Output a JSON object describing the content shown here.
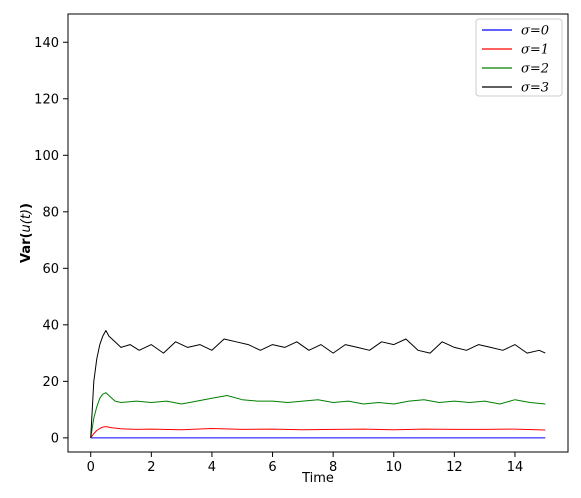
{
  "chart_data": {
    "type": "line",
    "xlabel": "Time",
    "ylabel_prefix": "Var(",
    "ylabel_var": "u(t)",
    "ylabel_suffix": ")",
    "xlim": [
      -0.75,
      15.75
    ],
    "ylim": [
      -5,
      150
    ],
    "xticks": [
      0,
      2,
      4,
      6,
      8,
      10,
      12,
      14
    ],
    "yticks": [
      0,
      20,
      40,
      60,
      80,
      100,
      120,
      140
    ],
    "grid": false,
    "legend_position": "top-right",
    "series": [
      {
        "name": "σ=0",
        "color": "#0000ff",
        "x": [
          0,
          15
        ],
        "y": [
          0,
          0
        ]
      },
      {
        "name": "σ=1",
        "color": "#ff0000",
        "x": [
          0,
          0.1,
          0.2,
          0.3,
          0.4,
          0.5,
          0.7,
          1,
          1.5,
          2,
          3,
          4,
          5,
          6,
          7,
          8,
          9,
          10,
          11,
          12,
          13,
          14,
          15
        ],
        "y": [
          0,
          1.5,
          2.6,
          3.3,
          3.8,
          4.0,
          3.6,
          3.2,
          3.0,
          3.1,
          2.9,
          3.3,
          3.0,
          3.1,
          2.9,
          3.0,
          3.1,
          2.9,
          3.1,
          3.0,
          3.0,
          3.1,
          2.8
        ]
      },
      {
        "name": "σ=2",
        "color": "#008000",
        "x": [
          0,
          0.1,
          0.2,
          0.3,
          0.4,
          0.5,
          0.6,
          0.8,
          1,
          1.5,
          2,
          2.5,
          3,
          3.5,
          4,
          4.5,
          5,
          5.5,
          6,
          6.5,
          7,
          7.5,
          8,
          8.5,
          9,
          9.5,
          10,
          10.5,
          11,
          11.5,
          12,
          12.5,
          13,
          13.5,
          14,
          14.5,
          15
        ],
        "y": [
          0,
          7,
          11,
          14,
          15.5,
          16,
          15,
          13,
          12.5,
          13,
          12.5,
          13,
          12,
          13,
          14,
          15,
          13.5,
          13,
          13,
          12.5,
          13,
          13.5,
          12.5,
          13,
          12,
          12.5,
          12,
          13,
          13.5,
          12.5,
          13,
          12.5,
          13,
          12,
          13.5,
          12.5,
          12
        ]
      },
      {
        "name": "σ=3",
        "color": "#000000",
        "x": [
          0,
          0.1,
          0.2,
          0.3,
          0.4,
          0.5,
          0.6,
          0.8,
          1,
          1.3,
          1.6,
          2,
          2.4,
          2.8,
          3.2,
          3.6,
          4,
          4.4,
          4.8,
          5.2,
          5.6,
          6,
          6.4,
          6.8,
          7.2,
          7.6,
          8,
          8.4,
          8.8,
          9.2,
          9.6,
          10,
          10.4,
          10.8,
          11.2,
          11.6,
          12,
          12.4,
          12.8,
          13.2,
          13.6,
          14,
          14.4,
          14.8,
          15
        ],
        "y": [
          0,
          20,
          28,
          33,
          36,
          38,
          36,
          34,
          32,
          33,
          31,
          33,
          30,
          34,
          32,
          33,
          31,
          35,
          34,
          33,
          31,
          33,
          32,
          34,
          31,
          33,
          30,
          33,
          32,
          31,
          34,
          33,
          35,
          31,
          30,
          34,
          32,
          31,
          33,
          32,
          31,
          33,
          30,
          31,
          30
        ]
      }
    ]
  }
}
